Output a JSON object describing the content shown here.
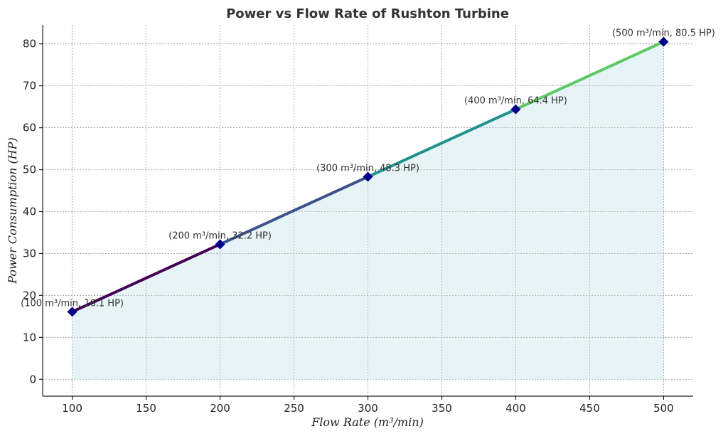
{
  "chart_data": {
    "type": "line",
    "title": "Power vs Flow Rate of Rushton Turbine",
    "xlabel": "Flow Rate (m³/min)",
    "ylabel": "Power Consumption (HP)",
    "x": [
      100,
      200,
      300,
      400,
      500
    ],
    "y": [
      16.1,
      32.2,
      48.3,
      64.4,
      80.5
    ],
    "annotations": [
      "(100 m³/min, 16.1 HP)",
      "(200 m³/min, 32.2 HP)",
      "(300 m³/min, 48.3 HP)",
      "(400 m³/min, 64.4 HP)",
      "(500 m³/min, 80.5 HP)"
    ],
    "xlim": [
      80,
      520
    ],
    "ylim": [
      -4.025,
      84.525
    ],
    "xticks": [
      100,
      150,
      200,
      250,
      300,
      350,
      400,
      450,
      500
    ],
    "yticks": [
      0,
      10,
      20,
      30,
      40,
      50,
      60,
      70,
      80
    ],
    "grid": true,
    "segment_colors": [
      "#440154",
      "#3b528b",
      "#21918c",
      "#5ec962"
    ],
    "marker_color": "#00008b",
    "marker": "diamond",
    "fill_color": "#add8e6"
  }
}
